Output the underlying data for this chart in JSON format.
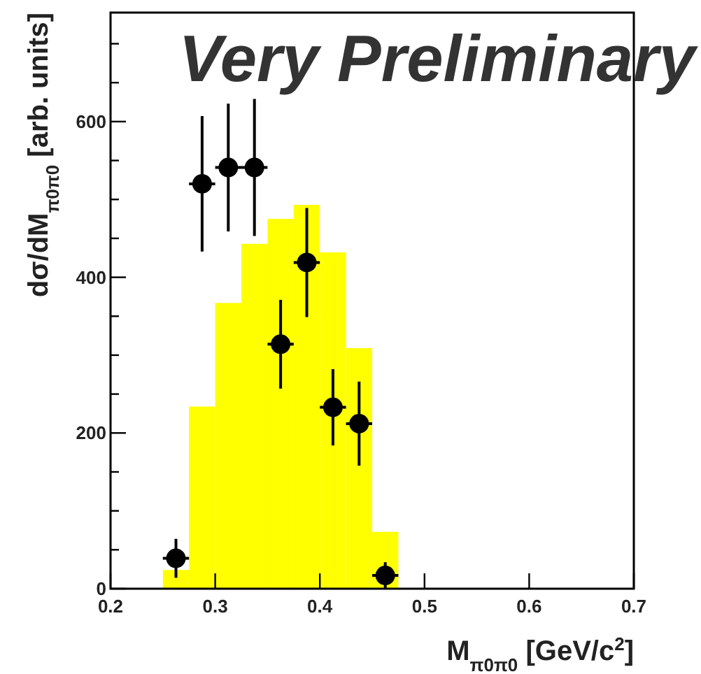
{
  "chart_data": {
    "type": "histogram",
    "xlabel": "M$_{π0π0}$ [GeV/c$^{2}$]",
    "ylabel": "dσ/dM$_{π0π0}$ [arb. units]",
    "annotations": [
      "Very Preliminary"
    ],
    "bins": [
      0.25,
      0.275,
      0.3,
      0.325,
      0.35,
      0.375,
      0.4,
      0.425,
      0.45,
      0.475
    ],
    "values": [
      24,
      234,
      367,
      443,
      475,
      493,
      432,
      309,
      73
    ],
    "color": "#ffff00",
    "series": [
      {
        "type": "scatter",
        "color": "#000000",
        "x": [
          0.2625,
          0.2875,
          0.3125,
          0.3375,
          0.3625,
          0.3875,
          0.4125,
          0.4375,
          0.4625
        ],
        "values": [
          39,
          520,
          541,
          541,
          314,
          419,
          233,
          212,
          17
        ],
        "errors": [
          25,
          87,
          82,
          88,
          57,
          70,
          49,
          54,
          17
        ],
        "xerrors": [
          0.0125,
          0.0125,
          0.0125,
          0.0125,
          0.0125,
          0.0125,
          0.0125,
          0.0125,
          0.0125
        ]
      }
    ],
    "marker": "circle",
    "grid": false,
    "xlim": [
      0.2,
      0.7
    ],
    "ylim": [
      0,
      740
    ],
    "xticks": [
      {
        "value": 0.2,
        "label": "0.2"
      },
      0.3,
      0.4,
      0.5,
      0.6,
      {
        "value": 0.7,
        "label": "0.7"
      }
    ],
    "yticks": [
      0,
      {
        "value": 50,
        "label": null
      },
      {
        "value": 100,
        "label": null
      },
      {
        "value": 150,
        "label": null
      },
      200,
      {
        "value": 250,
        "label": null
      },
      {
        "value": 300,
        "label": null
      },
      {
        "value": 350,
        "label": null
      },
      400,
      {
        "value": 450,
        "label": null
      },
      {
        "value": 500,
        "label": null
      },
      {
        "value": 550,
        "label": null
      },
      600,
      {
        "value": 650,
        "label": null
      },
      {
        "value": 700,
        "label": null
      }
    ]
  }
}
